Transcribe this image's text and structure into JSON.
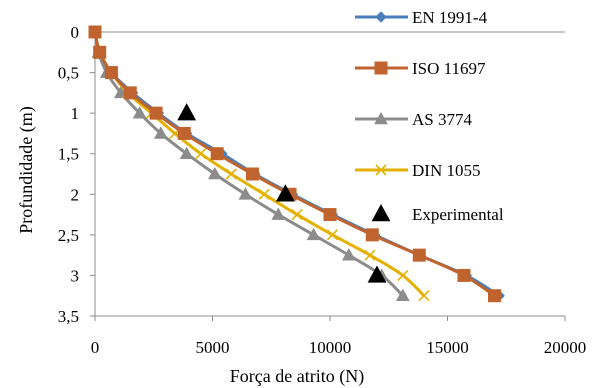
{
  "chart_data": {
    "type": "line",
    "xlabel": "Força de atrito (N)",
    "ylabel": "Profundidade (m)",
    "xlim": [
      0,
      20000
    ],
    "ylim": [
      0,
      3.5
    ],
    "y_reversed": true,
    "grid": false,
    "legend_position": "top-right",
    "x_ticks": [
      "0",
      "5000",
      "10000",
      "15000",
      "20000"
    ],
    "y_ticks": [
      "0",
      "0,5",
      "1",
      "1,5",
      "2",
      "2,5",
      "3",
      "3,5"
    ],
    "series": [
      {
        "name": "EN 1991-4",
        "color": "#4a7ebb",
        "marker": "diamond",
        "points": [
          [
            0,
            0
          ],
          [
            200,
            0.25
          ],
          [
            700,
            0.5
          ],
          [
            1600,
            0.75
          ],
          [
            2700,
            1.0
          ],
          [
            3900,
            1.25
          ],
          [
            5400,
            1.5
          ],
          [
            6800,
            1.75
          ],
          [
            8400,
            2.0
          ],
          [
            10100,
            2.25
          ],
          [
            11900,
            2.5
          ],
          [
            13800,
            2.75
          ],
          [
            15800,
            3.0
          ],
          [
            17200,
            3.25
          ]
        ]
      },
      {
        "name": "ISO 11697",
        "color": "#c0642f",
        "marker": "square",
        "points": [
          [
            0,
            0
          ],
          [
            200,
            0.25
          ],
          [
            700,
            0.5
          ],
          [
            1500,
            0.75
          ],
          [
            2600,
            1.0
          ],
          [
            3800,
            1.25
          ],
          [
            5200,
            1.5
          ],
          [
            6700,
            1.75
          ],
          [
            8300,
            2.0
          ],
          [
            10000,
            2.25
          ],
          [
            11800,
            2.5
          ],
          [
            13800,
            2.75
          ],
          [
            15700,
            3.0
          ],
          [
            17000,
            3.25
          ]
        ]
      },
      {
        "name": "AS 3774",
        "color": "#8c8c8c",
        "marker": "triangle",
        "points": [
          [
            0,
            0
          ],
          [
            150,
            0.25
          ],
          [
            500,
            0.5
          ],
          [
            1100,
            0.75
          ],
          [
            1900,
            1.0
          ],
          [
            2800,
            1.25
          ],
          [
            3900,
            1.5
          ],
          [
            5100,
            1.75
          ],
          [
            6400,
            2.0
          ],
          [
            7800,
            2.25
          ],
          [
            9300,
            2.5
          ],
          [
            10800,
            2.75
          ],
          [
            12200,
            3.0
          ],
          [
            13100,
            3.25
          ]
        ]
      },
      {
        "name": "DIN 1055",
        "color": "#e3b100",
        "marker": "x",
        "points": [
          [
            0,
            0
          ],
          [
            200,
            0.25
          ],
          [
            700,
            0.5
          ],
          [
            1400,
            0.75
          ],
          [
            2400,
            1.0
          ],
          [
            3400,
            1.25
          ],
          [
            4500,
            1.5
          ],
          [
            5800,
            1.75
          ],
          [
            7200,
            2.0
          ],
          [
            8600,
            2.25
          ],
          [
            10100,
            2.5
          ],
          [
            11700,
            2.75
          ],
          [
            13100,
            3.0
          ],
          [
            14000,
            3.25
          ]
        ]
      },
      {
        "name": "Experimental",
        "color": "#000000",
        "marker": "filled-triangle",
        "line": false,
        "points": [
          [
            3900,
            1.0
          ],
          [
            8100,
            2.0
          ],
          [
            12000,
            3.0
          ]
        ]
      }
    ]
  }
}
